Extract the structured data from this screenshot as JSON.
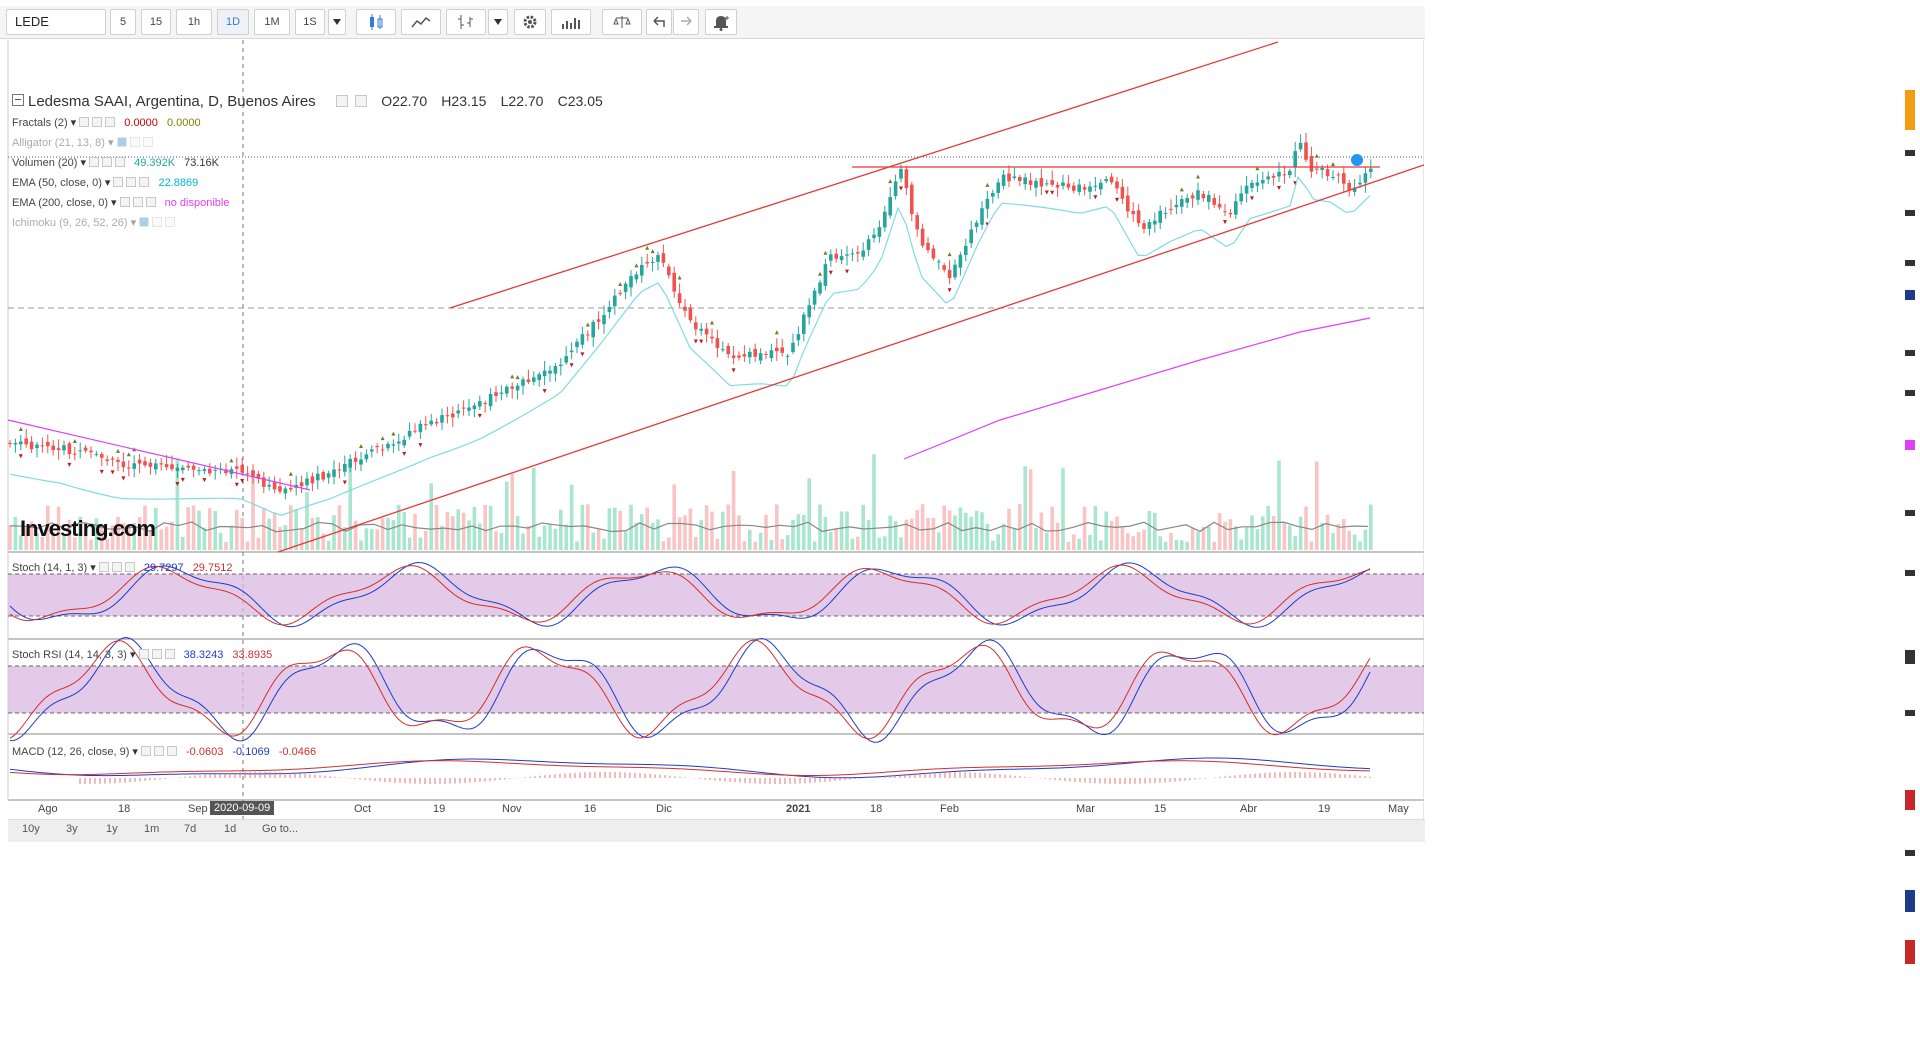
{
  "toolbar": {
    "symbol": "LEDE",
    "intervals": [
      "5",
      "15",
      "1h",
      "1D",
      "1M",
      "1S"
    ],
    "active_interval": "1D",
    "icons": [
      "candles-icon",
      "line-chart-icon",
      "bars-icon",
      "dropdown-icon",
      "settings-icon",
      "indicators-icon",
      "compare-icon",
      "undo-icon",
      "redo-icon",
      "alert-icon"
    ]
  },
  "header": {
    "title": "Ledesma SAAI, Argentina, D, Buenos Aires",
    "open": "O22.70",
    "high": "H23.15",
    "low": "L22.70",
    "close": "C23.05"
  },
  "indicators": [
    {
      "name": "Fractals (2)",
      "v1": "0.0000",
      "v2": "0.0000",
      "c1": "#cc0000",
      "c2": "#808000"
    },
    {
      "name": "Alligator (21, 13, 8)",
      "v1": "",
      "v2": "",
      "faded": true
    },
    {
      "name": "Volumen (20)",
      "v1": "49.392K",
      "v2": "73.16K",
      "c1": "#26a69a",
      "c2": "#333333"
    },
    {
      "name": "EMA (50, close, 0)",
      "v1": "22.8869",
      "v2": "",
      "c1": "#00b8d4"
    },
    {
      "name": "EMA (200, close, 0)",
      "v1": "no disponible",
      "v2": "",
      "c1": "#e040fb"
    },
    {
      "name": "Ichimoku (9, 26, 52, 26)",
      "v1": "",
      "v2": "",
      "faded": true
    }
  ],
  "stoch": {
    "label": "Stoch (14, 1, 3)",
    "k": "29.7297",
    "d": "29.7512"
  },
  "stochrsi": {
    "label": "Stoch RSI (14, 14, 3, 3)",
    "k": "38.3243",
    "d": "33.8935"
  },
  "macd": {
    "label": "MACD (12, 26, close, 9)",
    "hist": "-0.0603",
    "macd": "-0.1069",
    "signal": "-0.0466"
  },
  "xaxis": {
    "labels": [
      "Ago",
      "18",
      "Sep",
      "Oct",
      "19",
      "Nov",
      "16",
      "Dic",
      "2021",
      "18",
      "Feb",
      "Mar",
      "15",
      "Abr",
      "19",
      "May"
    ],
    "crosshair_date": "2020-09-09"
  },
  "ranges": [
    "10y",
    "3y",
    "1y",
    "1m",
    "7d",
    "1d",
    "Go to..."
  ],
  "watermark": "Investing.com",
  "colors": {
    "up": "#26a69a",
    "down": "#ef5350",
    "ema50": "#7fdbe6",
    "ema200": "#e040fb",
    "trend": "#e53935",
    "band": "#d9b8e0"
  },
  "chart_data": {
    "type": "candlestick",
    "period": "2020-08 to 2021-04",
    "last": {
      "open": 22.7,
      "high": 23.15,
      "low": 22.7,
      "close": 23.05
    }
  }
}
